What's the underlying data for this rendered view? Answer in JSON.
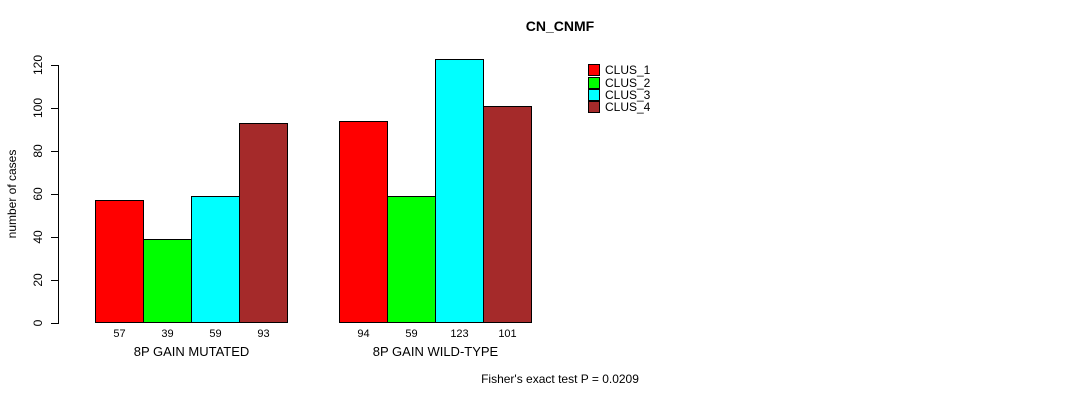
{
  "chart_data": {
    "type": "bar",
    "title": "CN_CNMF",
    "ylabel": "number of cases",
    "xlabel": "",
    "ylim": [
      0,
      120
    ],
    "yticks": [
      0,
      20,
      40,
      60,
      80,
      100,
      120
    ],
    "categories": [
      "8P GAIN MUTATED",
      "8P GAIN WILD-TYPE"
    ],
    "series": [
      {
        "name": "CLUS_1",
        "color": "#FF0000",
        "values": [
          57,
          94
        ]
      },
      {
        "name": "CLUS_2",
        "color": "#00FF00",
        "values": [
          39,
          59
        ]
      },
      {
        "name": "CLUS_3",
        "color": "#00FFFF",
        "values": [
          59,
          123
        ]
      },
      {
        "name": "CLUS_4",
        "color": "#A52A2A",
        "values": [
          93,
          101
        ]
      }
    ],
    "bar_value_labels": [
      [
        57,
        39,
        59,
        93
      ],
      [
        94,
        59,
        123,
        101
      ]
    ],
    "legend_position": "right",
    "grid": false,
    "annotation": "Fisher's exact test P = 0.0209"
  },
  "colors": {
    "background": "#FFFFFF",
    "axis": "#000000",
    "text": "#000000"
  }
}
